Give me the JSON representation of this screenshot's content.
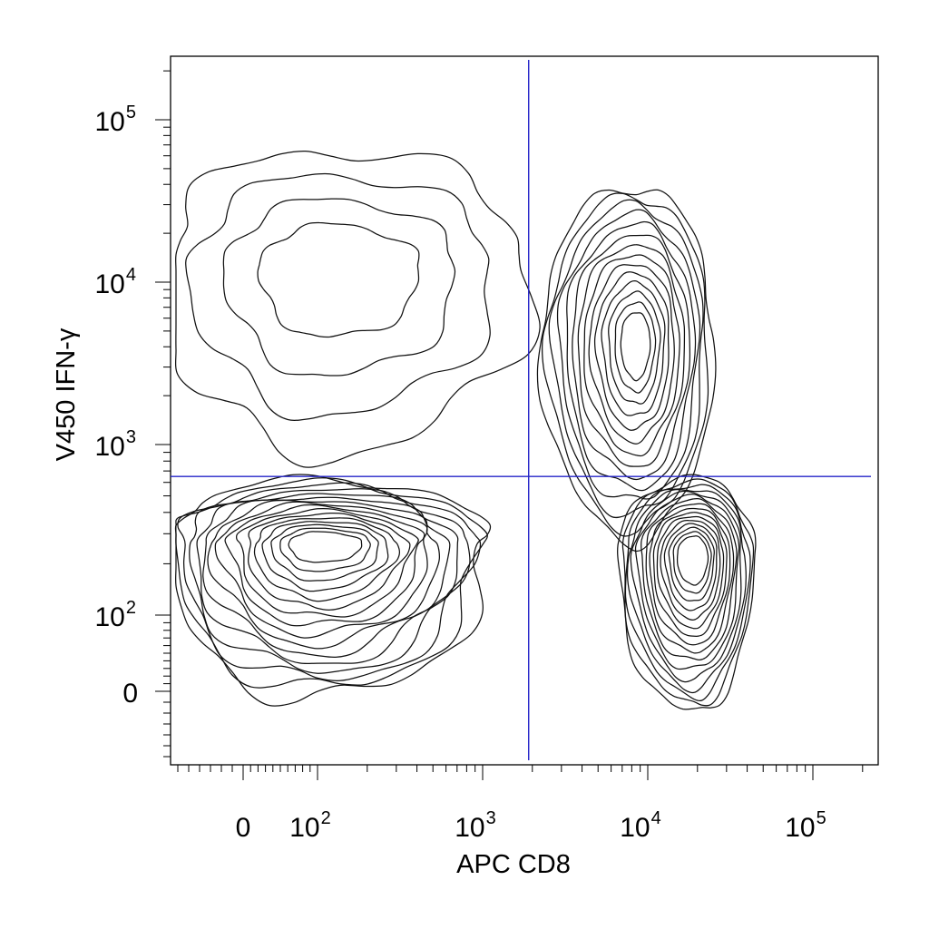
{
  "chart_data": {
    "type": "contour",
    "title": "",
    "xlabel": "APC CD8",
    "ylabel": "V450 IFN-γ",
    "x_scale": "biexponential",
    "y_scale": "biexponential",
    "x_ticks": [
      {
        "value": 0,
        "base": "0",
        "exp": ""
      },
      {
        "value": 100,
        "base": "10",
        "exp": "2"
      },
      {
        "value": 1000,
        "base": "10",
        "exp": "3"
      },
      {
        "value": 10000,
        "base": "10",
        "exp": "4"
      },
      {
        "value": 100000,
        "base": "10",
        "exp": "5"
      }
    ],
    "y_ticks": [
      {
        "value": 0,
        "base": "0",
        "exp": ""
      },
      {
        "value": 100,
        "base": "10",
        "exp": "2"
      },
      {
        "value": 1000,
        "base": "10",
        "exp": "3"
      },
      {
        "value": 10000,
        "base": "10",
        "exp": "4"
      },
      {
        "value": 100000,
        "base": "10",
        "exp": "5"
      }
    ],
    "quadrant_gate": {
      "x": 1900,
      "y": 650,
      "color": "#2424c8"
    },
    "grid": false,
    "legend": "none",
    "populations": [
      {
        "region": "CD8- IFN-γ-",
        "center": [
          100,
          260
        ]
      },
      {
        "region": "CD8- IFN-γ+",
        "center": [
          80,
          15000
        ]
      },
      {
        "region": "CD8+ IFN-γ+",
        "center": [
          8500,
          5000
        ]
      },
      {
        "region": "CD8+ IFN-γ-",
        "center": [
          19000,
          250
        ]
      }
    ]
  }
}
